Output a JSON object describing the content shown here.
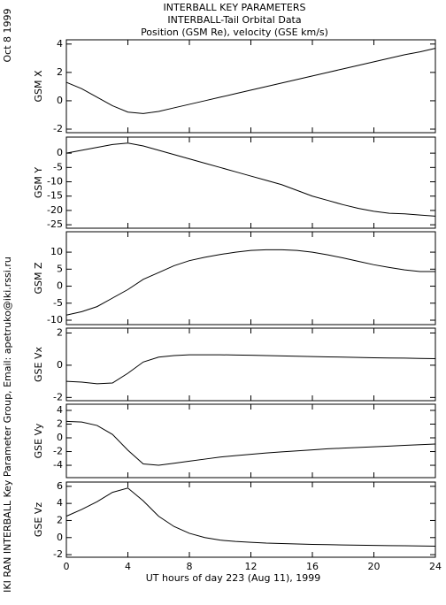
{
  "header": {
    "lines": [
      "INTERBALL KEY PARAMETERS",
      "INTERBALL-Tail Orbital Data",
      "Position (GSM Re), velocity (GSE km/s)"
    ]
  },
  "side": {
    "date": "Oct  8 1999",
    "credit": "IKI RAN INTERBALL Key Parameter Group, Email: apetruko@iki.rssi.ru"
  },
  "chart_data": [
    {
      "type": "line",
      "ylabel": "GSM X",
      "x": [
        0,
        1,
        2,
        3,
        4,
        5,
        6,
        7,
        8,
        9,
        10,
        11,
        12,
        13,
        14,
        15,
        16,
        17,
        18,
        19,
        20,
        21,
        22,
        23,
        24
      ],
      "values": [
        1.3,
        0.85,
        0.25,
        -0.35,
        -0.8,
        -0.9,
        -0.75,
        -0.5,
        -0.25,
        0,
        0.25,
        0.5,
        0.75,
        1.0,
        1.25,
        1.5,
        1.75,
        2.0,
        2.25,
        2.5,
        2.75,
        3.0,
        3.25,
        3.45,
        3.7
      ],
      "xlim": [
        0,
        24
      ],
      "xticks": [
        0,
        4,
        8,
        12,
        16,
        20,
        24
      ],
      "ylim": [
        -2.25,
        4.3
      ],
      "yticks": [
        -2,
        0,
        2,
        4
      ]
    },
    {
      "type": "line",
      "ylabel": "GSM Y",
      "x": [
        0,
        1,
        2,
        3,
        4,
        5,
        6,
        7,
        8,
        9,
        10,
        11,
        12,
        13,
        14,
        15,
        16,
        17,
        18,
        19,
        20,
        21,
        22,
        23,
        24
      ],
      "values": [
        0,
        1,
        2,
        3,
        3.5,
        2.5,
        1,
        -0.5,
        -2,
        -3.5,
        -5,
        -6.5,
        -8,
        -9.5,
        -11,
        -13,
        -15,
        -16.5,
        -18,
        -19.3,
        -20.3,
        -21,
        -21.2,
        -21.6,
        -22
      ],
      "xlim": [
        0,
        24
      ],
      "xticks": [
        0,
        4,
        8,
        12,
        16,
        20,
        24
      ],
      "ylim": [
        -26.2,
        5.6
      ],
      "yticks": [
        -25,
        -20,
        -15,
        -10,
        -5,
        0
      ]
    },
    {
      "type": "line",
      "ylabel": "GSM Z",
      "x": [
        0,
        1,
        2,
        3,
        4,
        5,
        6,
        7,
        8,
        9,
        10,
        11,
        12,
        13,
        14,
        15,
        16,
        17,
        18,
        19,
        20,
        21,
        22,
        23,
        24
      ],
      "values": [
        -8.5,
        -7.5,
        -6,
        -3.5,
        -1,
        2,
        4,
        6,
        7.5,
        8.5,
        9.3,
        10,
        10.5,
        10.7,
        10.7,
        10.5,
        10,
        9.2,
        8.3,
        7.3,
        6.3,
        5.5,
        4.8,
        4.3,
        4.3
      ],
      "xlim": [
        0,
        24
      ],
      "xticks": [
        0,
        4,
        8,
        12,
        16,
        20,
        24
      ],
      "ylim": [
        -11.3,
        16
      ],
      "yticks": [
        -10,
        -5,
        0,
        5,
        10
      ]
    },
    {
      "type": "line",
      "ylabel": "GSE Vx",
      "x": [
        0,
        1,
        2,
        3,
        4,
        5,
        6,
        7,
        8,
        9,
        10,
        11,
        12,
        13,
        14,
        15,
        16,
        17,
        18,
        19,
        20,
        21,
        22,
        23,
        24
      ],
      "values": [
        -1,
        -1.05,
        -1.15,
        -1.1,
        -0.5,
        0.2,
        0.5,
        0.6,
        0.65,
        0.65,
        0.65,
        0.63,
        0.62,
        0.6,
        0.58,
        0.56,
        0.54,
        0.52,
        0.5,
        0.48,
        0.46,
        0.45,
        0.44,
        0.42,
        0.41
      ],
      "xlim": [
        0,
        24
      ],
      "xticks": [
        0,
        4,
        8,
        12,
        16,
        20,
        24
      ],
      "ylim": [
        -2.2,
        2.3
      ],
      "yticks": [
        -2,
        0,
        2
      ]
    },
    {
      "type": "line",
      "ylabel": "GSE Vy",
      "x": [
        0,
        1,
        2,
        3,
        4,
        5,
        6,
        7,
        8,
        9,
        10,
        11,
        12,
        13,
        14,
        15,
        16,
        17,
        18,
        19,
        20,
        21,
        22,
        23,
        24
      ],
      "values": [
        2.4,
        2.3,
        1.8,
        0.5,
        -1.8,
        -3.8,
        -4,
        -3.7,
        -3.4,
        -3.1,
        -2.8,
        -2.6,
        -2.4,
        -2.2,
        -2.05,
        -1.9,
        -1.75,
        -1.6,
        -1.5,
        -1.4,
        -1.3,
        -1.2,
        -1.1,
        -1.0,
        -0.9
      ],
      "xlim": [
        0,
        24
      ],
      "xticks": [
        0,
        4,
        8,
        12,
        16,
        20,
        24
      ],
      "ylim": [
        -5.8,
        4.9
      ],
      "yticks": [
        -4,
        -2,
        0,
        2,
        4
      ]
    },
    {
      "type": "line",
      "ylabel": "GSE Vz",
      "xlabel": "UT hours of day 223 (Aug 11), 1999",
      "x": [
        0,
        1,
        2,
        3,
        4,
        5,
        6,
        7,
        8,
        9,
        10,
        11,
        12,
        13,
        14,
        15,
        16,
        17,
        18,
        19,
        20,
        21,
        22,
        23,
        24
      ],
      "values": [
        2.5,
        3.3,
        4.2,
        5.3,
        5.8,
        4.3,
        2.5,
        1.3,
        0.5,
        0,
        -0.3,
        -0.45,
        -0.55,
        -0.65,
        -0.7,
        -0.75,
        -0.8,
        -0.83,
        -0.86,
        -0.89,
        -0.92,
        -0.94,
        -0.96,
        -0.98,
        -1.0
      ],
      "xlim": [
        0,
        24
      ],
      "xticks": [
        0,
        4,
        8,
        12,
        16,
        20,
        24
      ],
      "ylim": [
        -2.3,
        6.5
      ],
      "yticks": [
        -2,
        0,
        2,
        4,
        6
      ]
    }
  ]
}
